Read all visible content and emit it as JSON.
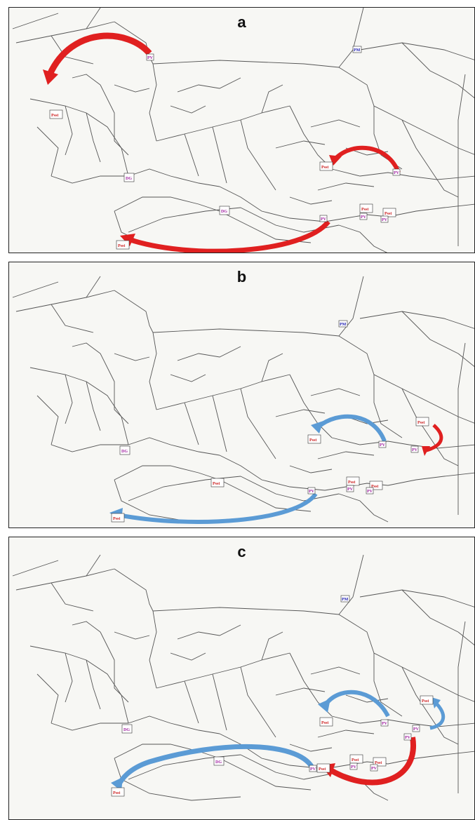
{
  "panels": [
    {
      "id": "a",
      "letter": "a"
    },
    {
      "id": "b",
      "letter": "b"
    },
    {
      "id": "c",
      "letter": "c"
    }
  ],
  "node_labels": {
    "pv": "PV",
    "pm": "PM",
    "psst": "Psst",
    "dg": "DG"
  },
  "colors": {
    "road": "#555555",
    "red_flow": "#e02020",
    "blue_flow": "#5b9bd5",
    "pm_label": "#1a1ab0",
    "pv_label": "#a020a0",
    "psst_label": "#cc2222",
    "panel_bg": "#f7f7f4"
  }
}
